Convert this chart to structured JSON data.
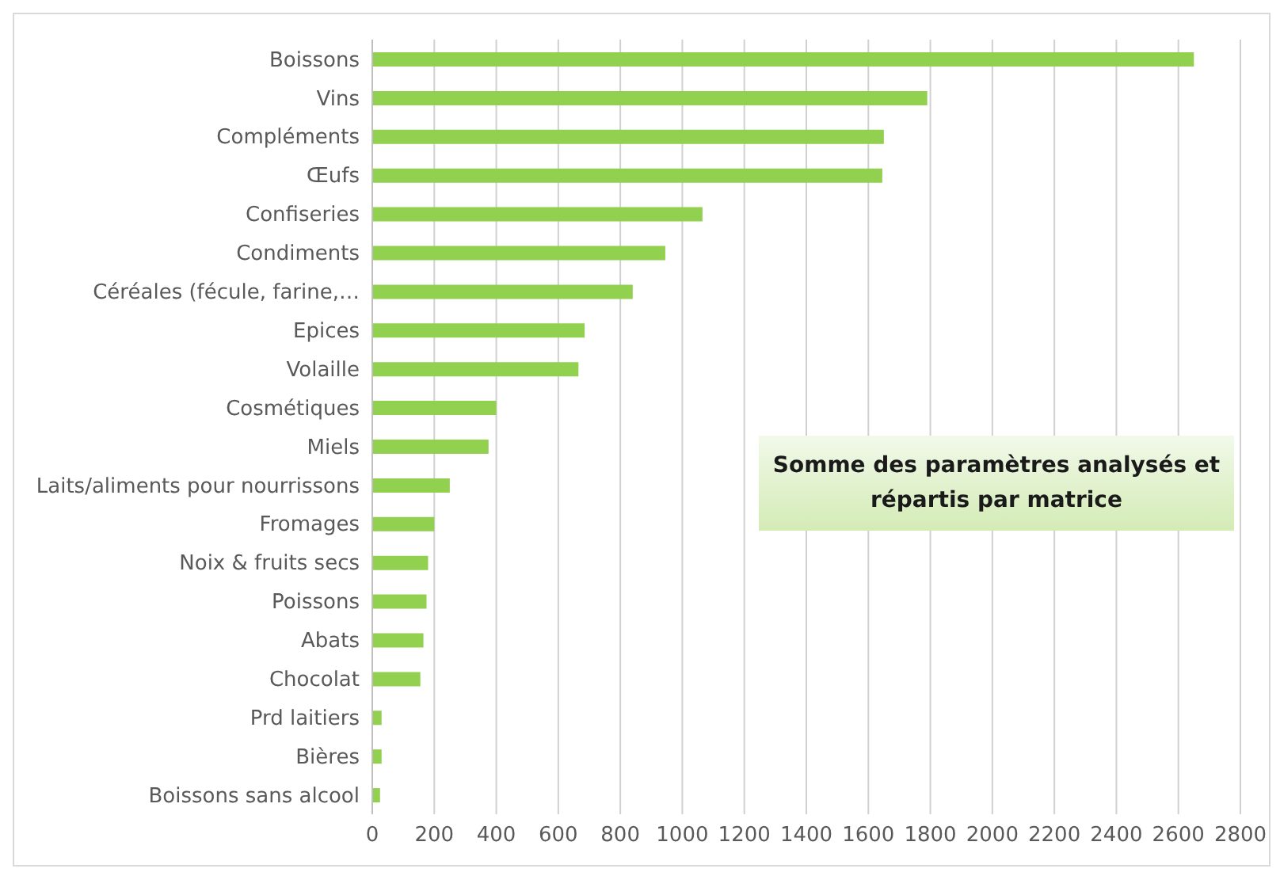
{
  "chart_data": {
    "type": "bar",
    "orientation": "horizontal",
    "annotations": [
      "Somme des paramètres analysés et répartis par matrice"
    ],
    "categories": [
      "Boissons",
      "Vins",
      "Compléments",
      "Œufs",
      "Confiseries",
      "Condiments",
      "Céréales (fécule, farine,…",
      "Epices",
      "Volaille",
      "Cosmétiques",
      "Miels",
      "Laits/aliments pour nourrissons",
      "Fromages",
      "Noix & fruits secs",
      "Poissons",
      "Abats",
      "Chocolat",
      "Prd laitiers",
      "Bières",
      "Boissons sans alcool"
    ],
    "values": [
      2650,
      1790,
      1650,
      1645,
      1065,
      945,
      840,
      685,
      665,
      400,
      375,
      250,
      200,
      180,
      175,
      165,
      155,
      30,
      30,
      25
    ],
    "color": "#92d050",
    "xlim": [
      0,
      2800
    ],
    "xticks": [
      0,
      200,
      400,
      600,
      800,
      1000,
      1200,
      1400,
      1600,
      1800,
      2000,
      2200,
      2400,
      2600,
      2800
    ],
    "grid": "x"
  }
}
